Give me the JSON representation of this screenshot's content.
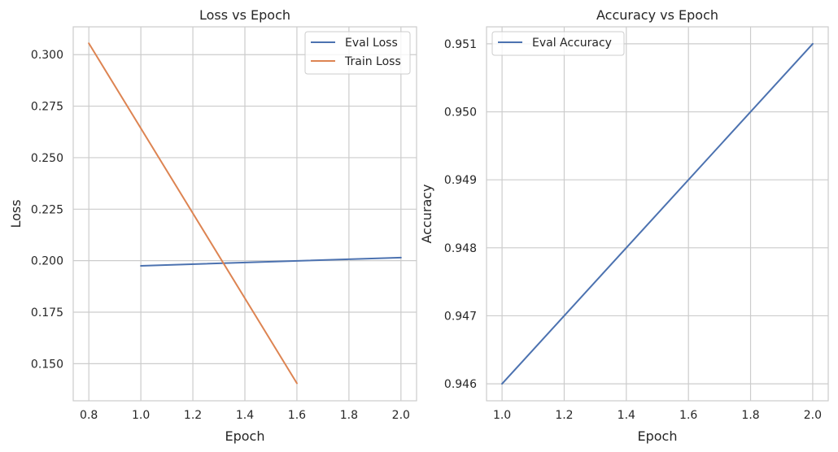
{
  "chart_data": [
    {
      "type": "line",
      "title": "Loss vs Epoch",
      "xlabel": "Epoch",
      "ylabel": "Loss",
      "xlim": [
        0.74,
        2.06
      ],
      "ylim": [
        0.132,
        0.3135
      ],
      "xticks": [
        0.8,
        1.0,
        1.2,
        1.4,
        1.6,
        1.8,
        2.0
      ],
      "xtick_labels": [
        "0.8",
        "1.0",
        "1.2",
        "1.4",
        "1.6",
        "1.8",
        "2.0"
      ],
      "yticks": [
        0.15,
        0.175,
        0.2,
        0.225,
        0.25,
        0.275,
        0.3
      ],
      "ytick_labels": [
        "0.150",
        "0.175",
        "0.200",
        "0.225",
        "0.250",
        "0.275",
        "0.300"
      ],
      "grid": true,
      "legend_position": "top-right",
      "series": [
        {
          "name": "Eval Loss",
          "color": "#4c72b0",
          "x": [
            1.0,
            2.0
          ],
          "y": [
            0.1975,
            0.2015
          ]
        },
        {
          "name": "Train Loss",
          "color": "#dd8452",
          "x": [
            0.8,
            1.6
          ],
          "y": [
            0.3055,
            0.1405
          ]
        }
      ]
    },
    {
      "type": "line",
      "title": "Accuracy vs Epoch",
      "xlabel": "Epoch",
      "ylabel": "Accuracy",
      "xlim": [
        0.95,
        2.05
      ],
      "ylim": [
        0.94575,
        0.95125
      ],
      "xticks": [
        1.0,
        1.2,
        1.4,
        1.6,
        1.8,
        2.0
      ],
      "xtick_labels": [
        "1.0",
        "1.2",
        "1.4",
        "1.6",
        "1.8",
        "2.0"
      ],
      "yticks": [
        0.946,
        0.947,
        0.948,
        0.949,
        0.95,
        0.951
      ],
      "ytick_labels": [
        "0.946",
        "0.947",
        "0.948",
        "0.949",
        "0.950",
        "0.951"
      ],
      "grid": true,
      "legend_position": "top-left",
      "series": [
        {
          "name": "Eval Accuracy",
          "color": "#4c72b0",
          "x": [
            1.0,
            2.0
          ],
          "y": [
            0.946,
            0.951
          ]
        }
      ]
    }
  ]
}
